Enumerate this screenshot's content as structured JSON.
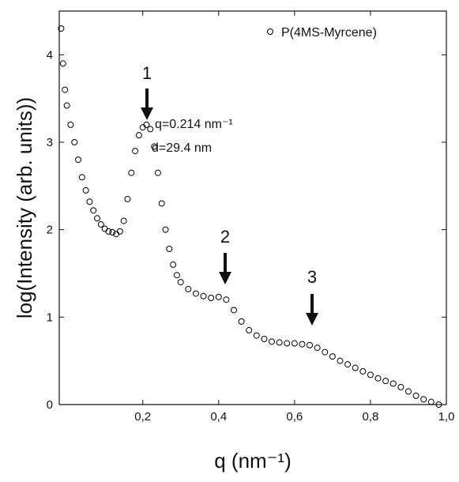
{
  "chart_data": {
    "type": "scatter",
    "x_label": "q (nm⁻¹)",
    "y_label": "log(Intensity (arb. units))",
    "annotations": [
      "1",
      "2",
      "3",
      "q=0.214 nm⁻¹",
      "d=29.4 nm"
    ],
    "xlim": [
      -0.02,
      1.0
    ],
    "ylim": [
      0,
      4.5
    ],
    "xticks": [
      {
        "value": 0.2,
        "label": "0,2"
      },
      {
        "value": 0.4,
        "label": "0,4"
      },
      {
        "value": 0.6,
        "label": "0,6"
      },
      {
        "value": 0.8,
        "label": "0,8"
      },
      {
        "value": 1.0,
        "label": "1,0"
      }
    ],
    "yticks": [
      0,
      1,
      2,
      3,
      4
    ],
    "legend": "top-right",
    "series": [
      {
        "name": "P(4MS-Myrcene)",
        "color": "#000000",
        "x": [
          -0.015,
          -0.01,
          -0.005,
          0,
          0.01,
          0.02,
          0.03,
          0.04,
          0.05,
          0.06,
          0.07,
          0.08,
          0.09,
          0.1,
          0.11,
          0.12,
          0.13,
          0.14,
          0.15,
          0.16,
          0.17,
          0.18,
          0.19,
          0.2,
          0.21,
          0.22,
          0.23,
          0.24,
          0.25,
          0.26,
          0.27,
          0.28,
          0.29,
          0.3,
          0.32,
          0.34,
          0.36,
          0.38,
          0.4,
          0.42,
          0.44,
          0.46,
          0.48,
          0.5,
          0.52,
          0.54,
          0.56,
          0.58,
          0.6,
          0.62,
          0.64,
          0.66,
          0.68,
          0.7,
          0.72,
          0.74,
          0.76,
          0.78,
          0.8,
          0.82,
          0.84,
          0.86,
          0.88,
          0.9,
          0.92,
          0.94,
          0.96,
          0.98
        ],
        "values": [
          4.3,
          3.9,
          3.6,
          3.42,
          3.2,
          3.0,
          2.8,
          2.6,
          2.45,
          2.32,
          2.22,
          2.13,
          2.06,
          2.01,
          1.98,
          1.97,
          1.95,
          1.98,
          2.1,
          2.35,
          2.65,
          2.9,
          3.08,
          3.17,
          3.2,
          3.15,
          2.95,
          2.65,
          2.3,
          2.0,
          1.78,
          1.6,
          1.48,
          1.4,
          1.32,
          1.27,
          1.24,
          1.22,
          1.23,
          1.2,
          1.08,
          0.95,
          0.85,
          0.79,
          0.75,
          0.72,
          0.71,
          0.7,
          0.7,
          0.69,
          0.68,
          0.65,
          0.6,
          0.55,
          0.5,
          0.46,
          0.42,
          0.38,
          0.34,
          0.3,
          0.27,
          0.24,
          0.2,
          0.15,
          0.1,
          0.06,
          0.03,
          0.0
        ]
      }
    ]
  }
}
